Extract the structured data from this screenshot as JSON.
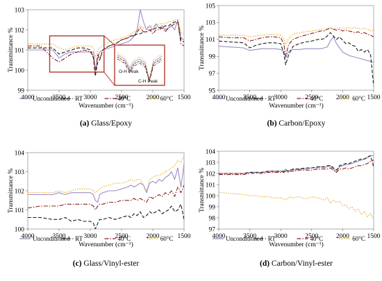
{
  "chart_data": [
    {
      "type": "line",
      "caption_letter": "(a)",
      "caption_text": "Glass/Epoxy",
      "xlabel": "Wavenumber (cm⁻¹)",
      "ylabel": "Transmittance %",
      "xlim": [
        4000,
        1500
      ],
      "ylim": [
        99,
        103
      ],
      "xticks": [
        4000,
        3500,
        3000,
        2500,
        2000,
        1500
      ],
      "yticks": [
        99,
        100,
        101,
        102,
        103
      ],
      "x": [
        4000,
        3800,
        3600,
        3500,
        3400,
        3300,
        3200,
        3100,
        3000,
        2950,
        2920,
        2880,
        2850,
        2800,
        2700,
        2600,
        2500,
        2400,
        2350,
        2300,
        2250,
        2200,
        2150,
        2100,
        2050,
        2000,
        1950,
        1900,
        1850,
        1800,
        1750,
        1700,
        1650,
        1600,
        1550,
        1500
      ],
      "series": [
        {
          "name": "Unconditioned",
          "color": "#9b8cc4",
          "dash": "",
          "values": [
            101.0,
            101.0,
            101.0,
            100.6,
            100.8,
            100.9,
            100.9,
            100.9,
            100.9,
            100.9,
            100.0,
            100.6,
            100.9,
            101.0,
            101.1,
            101.2,
            101.3,
            101.4,
            101.5,
            101.7,
            102.0,
            103.0,
            102.4,
            102.0,
            102.2,
            102.0,
            102.3,
            102.1,
            102.2,
            102.0,
            102.1,
            102.2,
            102.0,
            102.5,
            101.6,
            101.5
          ]
        },
        {
          "name": "RT",
          "color": "#1a1a1a",
          "dash": "5,2.5",
          "values": [
            101.1,
            101.1,
            101.1,
            100.8,
            100.9,
            101.0,
            101.1,
            101.1,
            101.0,
            100.6,
            99.7,
            100.4,
            100.5,
            101.0,
            101.2,
            101.3,
            101.5,
            101.6,
            101.7,
            101.7,
            101.8,
            101.8,
            101.9,
            101.9,
            102.0,
            102.0,
            102.1,
            102.1,
            102.1,
            102.2,
            102.2,
            102.3,
            102.4,
            102.4,
            101.5,
            101.4
          ]
        },
        {
          "name": "40°C",
          "color": "#8b1c1c",
          "dash": "6,2,1.5,2",
          "values": [
            101.2,
            101.2,
            100.6,
            100.4,
            100.6,
            100.8,
            100.9,
            101.0,
            100.9,
            100.7,
            99.9,
            100.8,
            100.5,
            101.0,
            101.2,
            101.3,
            101.5,
            101.6,
            101.7,
            101.7,
            101.9,
            102.1,
            101.9,
            101.9,
            102.0,
            101.8,
            102.0,
            102.0,
            102.1,
            101.9,
            102.1,
            102.2,
            102.3,
            102.4,
            101.3,
            101.2
          ]
        },
        {
          "name": "60°C",
          "color": "#e3a91a",
          "dash": "1.5,1.8",
          "values": [
            101.3,
            101.3,
            101.3,
            101.1,
            101.0,
            101.1,
            101.2,
            101.2,
            101.2,
            101.1,
            100.6,
            101.0,
            101.1,
            101.2,
            101.4,
            101.5,
            101.6,
            101.7,
            101.8,
            101.9,
            102.0,
            102.2,
            102.1,
            102.1,
            102.2,
            102.2,
            102.2,
            102.3,
            102.3,
            102.3,
            102.4,
            102.4,
            102.5,
            102.5,
            101.9,
            101.8
          ]
        }
      ],
      "annotations": [
        "O-H Peak",
        "C-H Peak"
      ]
    },
    {
      "type": "line",
      "caption_letter": "(b)",
      "caption_text": "Carbon/Epoxy",
      "xlabel": "Wavenumber (cm⁻¹)",
      "ylabel": "Transmittance %",
      "xlim": [
        4000,
        1500
      ],
      "ylim": [
        95,
        105
      ],
      "xticks": [
        4000,
        3500,
        3000,
        2500,
        2000,
        1500
      ],
      "yticks": [
        95,
        97,
        99,
        101,
        103,
        105
      ],
      "x": [
        4000,
        3800,
        3600,
        3500,
        3400,
        3300,
        3200,
        3100,
        3000,
        2950,
        2920,
        2880,
        2850,
        2800,
        2700,
        2600,
        2500,
        2400,
        2350,
        2300,
        2250,
        2200,
        2150,
        2100,
        2050,
        2000,
        1950,
        1900,
        1850,
        1800,
        1750,
        1700,
        1650,
        1600,
        1550,
        1500
      ],
      "series": [
        {
          "name": "Unconditioned",
          "color": "#9b8cc4",
          "dash": "",
          "values": [
            100.2,
            100.1,
            100.0,
            99.7,
            99.8,
            99.9,
            99.9,
            99.9,
            99.8,
            99.6,
            98.8,
            99.5,
            99.7,
            99.8,
            99.8,
            99.9,
            99.9,
            99.9,
            99.9,
            100.0,
            100.1,
            100.8,
            101.3,
            100.5,
            100.0,
            99.5,
            99.3,
            99.1,
            99.0,
            98.9,
            98.8,
            98.7,
            98.6,
            98.5,
            98.4,
            98.3
          ]
        },
        {
          "name": "RT",
          "color": "#1a1a1a",
          "dash": "5,2.5",
          "values": [
            100.8,
            100.7,
            100.6,
            100.0,
            100.3,
            100.5,
            100.6,
            100.6,
            100.5,
            99.3,
            98.0,
            99.0,
            99.5,
            100.2,
            100.5,
            100.7,
            100.8,
            101.0,
            101.0,
            101.1,
            101.4,
            101.8,
            101.4,
            101.0,
            101.3,
            100.9,
            100.5,
            100.6,
            100.3,
            100.2,
            99.6,
            99.8,
            99.5,
            99.8,
            99.2,
            95.5
          ]
        },
        {
          "name": "40°C",
          "color": "#8b1c1c",
          "dash": "6,2,1.5,2",
          "values": [
            101.3,
            101.2,
            101.2,
            100.8,
            101.0,
            101.2,
            101.3,
            101.3,
            101.2,
            100.5,
            99.0,
            100.2,
            100.6,
            101.0,
            101.3,
            101.5,
            101.7,
            101.9,
            102.0,
            102.0,
            102.2,
            102.3,
            102.2,
            102.1,
            102.2,
            102.0,
            102.1,
            102.0,
            101.9,
            101.8,
            101.9,
            101.7,
            101.8,
            101.6,
            101.5,
            101.3
          ]
        },
        {
          "name": "60°C",
          "color": "#e3a91a",
          "dash": "1.5,1.8",
          "values": [
            101.5,
            101.5,
            101.5,
            101.3,
            101.4,
            101.5,
            101.6,
            101.6,
            101.5,
            101.1,
            100.4,
            101.0,
            101.3,
            101.6,
            101.8,
            101.9,
            102.0,
            102.1,
            102.2,
            102.2,
            102.3,
            102.4,
            102.3,
            102.3,
            102.4,
            102.3,
            102.3,
            102.4,
            102.3,
            102.4,
            102.3,
            102.2,
            102.3,
            102.2,
            102.0,
            102.1
          ]
        }
      ]
    },
    {
      "type": "line",
      "caption_letter": "(c)",
      "caption_text": "Glass/Vinyl-ester",
      "xlabel": "Wavenumber (cm⁻¹)",
      "ylabel": "Transmittance %",
      "xlim": [
        4000,
        1500
      ],
      "ylim": [
        100,
        104
      ],
      "xticks": [
        4000,
        3500,
        3000,
        2500,
        2000,
        1500
      ],
      "yticks": [
        100,
        101,
        102,
        103,
        104
      ],
      "x": [
        4000,
        3800,
        3600,
        3500,
        3400,
        3300,
        3200,
        3100,
        3000,
        2950,
        2920,
        2880,
        2850,
        2800,
        2700,
        2600,
        2500,
        2400,
        2350,
        2300,
        2250,
        2200,
        2150,
        2100,
        2050,
        2000,
        1950,
        1900,
        1850,
        1800,
        1750,
        1700,
        1650,
        1600,
        1550,
        1500
      ],
      "series": [
        {
          "name": "Unconditioned",
          "color": "#9b8cc4",
          "dash": "",
          "values": [
            101.8,
            101.8,
            101.8,
            101.9,
            101.8,
            101.9,
            101.9,
            101.9,
            101.9,
            101.8,
            101.5,
            101.4,
            101.8,
            101.9,
            102.0,
            102.0,
            102.1,
            102.2,
            102.3,
            102.2,
            102.3,
            102.4,
            102.3,
            101.9,
            102.4,
            102.5,
            102.4,
            102.6,
            102.5,
            102.7,
            102.8,
            103.0,
            102.6,
            103.2,
            102.2,
            103.4
          ]
        },
        {
          "name": "RT",
          "color": "#1a1a1a",
          "dash": "5,2.5",
          "values": [
            100.6,
            100.6,
            100.5,
            100.5,
            100.6,
            100.4,
            100.5,
            100.4,
            100.4,
            100.3,
            100.0,
            100.3,
            100.5,
            100.5,
            100.6,
            100.5,
            100.6,
            100.7,
            100.6,
            100.8,
            100.7,
            100.9,
            100.6,
            100.7,
            100.9,
            100.8,
            100.9,
            101.0,
            100.8,
            100.9,
            101.0,
            101.2,
            100.9,
            101.0,
            101.3,
            100.5
          ]
        },
        {
          "name": "40°C",
          "color": "#8b1c1c",
          "dash": "6,2,1.5,2",
          "values": [
            101.1,
            101.2,
            101.2,
            101.2,
            101.3,
            101.3,
            101.3,
            101.3,
            101.3,
            101.2,
            101.0,
            101.2,
            101.3,
            101.3,
            101.4,
            101.4,
            101.5,
            101.5,
            101.5,
            101.6,
            101.5,
            101.6,
            101.5,
            101.4,
            101.7,
            101.6,
            101.7,
            101.8,
            101.7,
            101.9,
            101.8,
            102.0,
            101.7,
            102.2,
            101.9,
            102.3
          ]
        },
        {
          "name": "60°C",
          "color": "#e3a91a",
          "dash": "1.5,1.8",
          "values": [
            101.9,
            101.9,
            101.9,
            102.0,
            101.9,
            102.0,
            102.1,
            102.1,
            102.1,
            102.0,
            101.9,
            102.0,
            102.1,
            102.2,
            102.3,
            102.4,
            102.4,
            102.5,
            102.6,
            102.5,
            102.6,
            102.6,
            102.3,
            102.0,
            102.6,
            102.7,
            102.8,
            102.8,
            102.9,
            103.0,
            103.1,
            103.2,
            103.3,
            103.6,
            103.5,
            103.8
          ]
        }
      ]
    },
    {
      "type": "line",
      "caption_letter": "(d)",
      "caption_text": "Carbon/Vinyl-ester",
      "xlabel": "Wavenumber (cm⁻¹)",
      "ylabel": "Transmittance %",
      "xlim": [
        4000,
        1500
      ],
      "ylim": [
        97,
        104
      ],
      "xticks": [
        4000,
        3500,
        3000,
        2500,
        2000,
        1500
      ],
      "yticks": [
        97,
        98,
        99,
        100,
        101,
        102,
        103,
        104
      ],
      "x": [
        4000,
        3800,
        3600,
        3500,
        3400,
        3300,
        3200,
        3100,
        3000,
        2950,
        2920,
        2880,
        2850,
        2800,
        2700,
        2600,
        2500,
        2400,
        2350,
        2300,
        2250,
        2200,
        2150,
        2100,
        2050,
        2000,
        1950,
        1900,
        1850,
        1800,
        1750,
        1700,
        1650,
        1600,
        1550,
        1500
      ],
      "series": [
        {
          "name": "Unconditioned",
          "color": "#9b8cc4",
          "dash": "",
          "values": [
            102.0,
            102.0,
            102.0,
            102.1,
            102.1,
            102.1,
            102.2,
            102.2,
            102.2,
            102.2,
            102.4,
            102.2,
            102.3,
            102.3,
            102.4,
            102.4,
            102.5,
            102.5,
            102.6,
            102.5,
            102.6,
            102.7,
            102.4,
            102.1,
            102.6,
            102.7,
            102.8,
            102.8,
            102.9,
            103.0,
            103.1,
            103.2,
            103.3,
            103.4,
            103.6,
            103.6
          ]
        },
        {
          "name": "RT",
          "color": "#1a1a1a",
          "dash": "5,2.5",
          "values": [
            102.0,
            102.0,
            102.0,
            102.1,
            102.1,
            102.1,
            102.2,
            102.2,
            102.2,
            102.2,
            102.3,
            102.2,
            102.3,
            102.4,
            102.4,
            102.5,
            102.5,
            102.6,
            102.6,
            102.6,
            102.7,
            102.7,
            102.5,
            102.3,
            102.7,
            102.8,
            102.9,
            102.9,
            103.0,
            103.1,
            103.2,
            103.3,
            103.3,
            103.5,
            103.6,
            102.6
          ]
        },
        {
          "name": "40°C",
          "color": "#8b1c1c",
          "dash": "6,2,1.5,2",
          "values": [
            101.9,
            101.9,
            101.9,
            102.0,
            102.0,
            102.0,
            102.1,
            102.1,
            102.1,
            102.1,
            102.2,
            102.1,
            102.2,
            102.2,
            102.3,
            102.3,
            102.3,
            102.4,
            102.4,
            102.4,
            102.4,
            102.5,
            102.3,
            102.1,
            102.4,
            102.4,
            102.5,
            102.4,
            102.5,
            102.6,
            102.7,
            102.7,
            102.8,
            102.9,
            103.1,
            103.2
          ]
        },
        {
          "name": "60°C",
          "color": "#e3a91a",
          "dash": "1.5,1.8",
          "values": [
            100.3,
            100.2,
            100.1,
            100.0,
            100.0,
            99.9,
            99.9,
            99.8,
            99.8,
            99.7,
            99.6,
            99.8,
            99.9,
            99.8,
            99.9,
            99.7,
            99.9,
            99.8,
            99.7,
            99.6,
            99.8,
            99.3,
            99.6,
            99.4,
            99.5,
            99.1,
            99.2,
            98.8,
            99.0,
            98.6,
            98.8,
            98.3,
            98.6,
            98.1,
            98.4,
            97.9
          ]
        }
      ]
    }
  ]
}
